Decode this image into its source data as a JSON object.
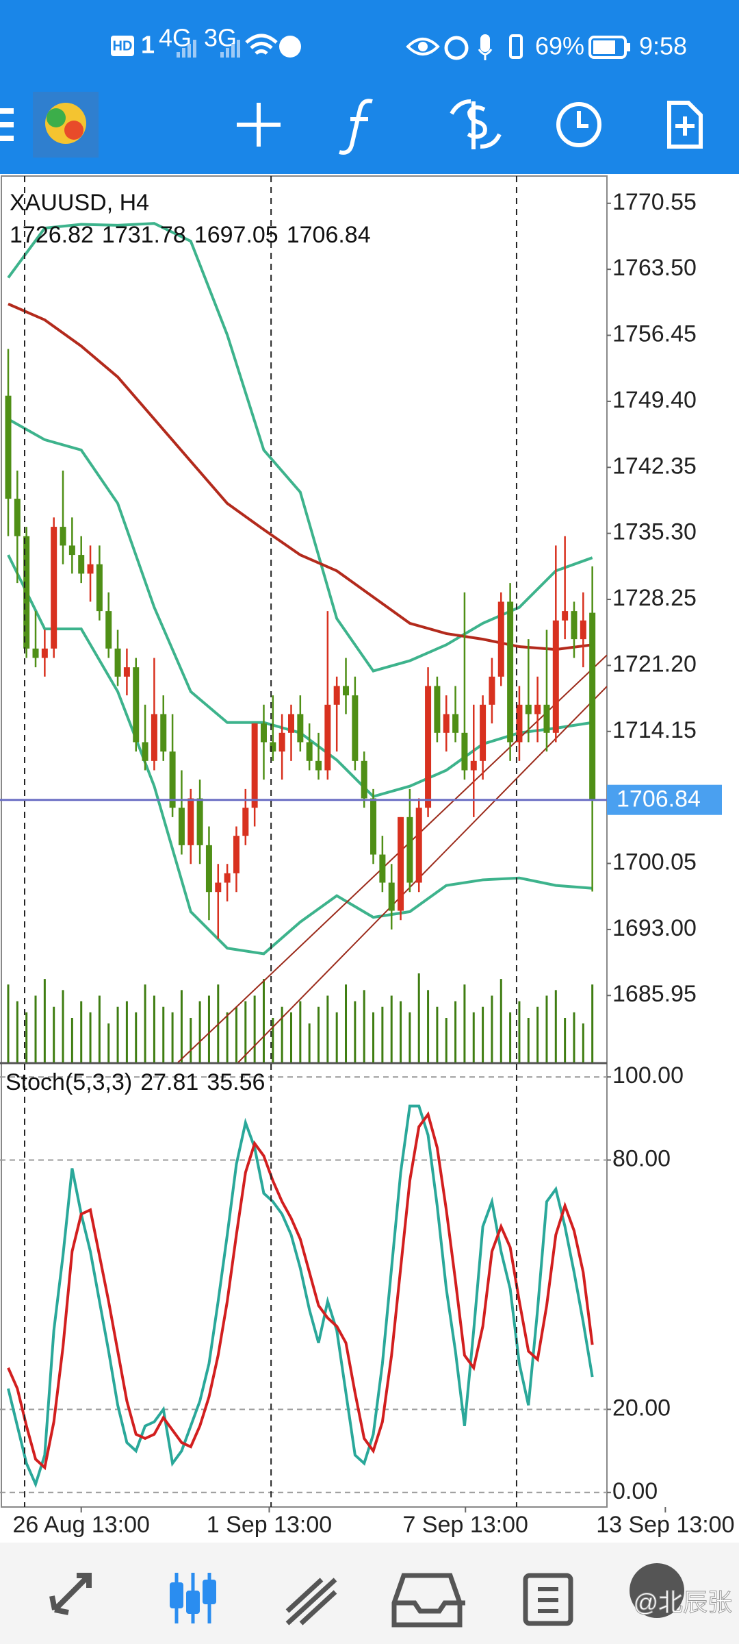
{
  "status_bar": {
    "network": [
      "HD",
      "1",
      "4G",
      "3G"
    ],
    "battery": "69%",
    "time": "9:58"
  },
  "chart_data": [
    {
      "type": "candlestick",
      "title": "XAUUSD, H4",
      "open": [
        1750,
        1739,
        1735,
        1723,
        1722,
        1723,
        1736,
        1734,
        1733,
        1731,
        1732,
        1727,
        1723,
        1720,
        1721,
        1713,
        1711,
        1716,
        1712,
        1706,
        1702,
        1707,
        1702,
        1697,
        1698,
        1699,
        1703,
        1706,
        1715,
        1713,
        1712,
        1714,
        1716,
        1713,
        1711,
        1710,
        1717,
        1719,
        1718,
        1711,
        1707,
        1701,
        1698,
        1695,
        1705,
        1698,
        1706,
        1719,
        1714,
        1716,
        1714,
        1710,
        1711,
        1717,
        1720,
        1728,
        1713,
        1717,
        1716,
        1717,
        1714,
        1726,
        1727,
        1724,
        1726.82
      ],
      "high": [
        1755,
        1742,
        1736,
        1727,
        1725,
        1737,
        1742,
        1737,
        1735,
        1734,
        1734,
        1729,
        1725,
        1723,
        1722,
        1717,
        1722,
        1718,
        1716,
        1710,
        1708,
        1709,
        1704,
        1700,
        1700,
        1704,
        1708,
        1715,
        1717,
        1718,
        1716,
        1717,
        1718,
        1715,
        1714,
        1727,
        1720,
        1722,
        1720,
        1712,
        1708,
        1703,
        1700,
        1705,
        1708,
        1707,
        1721,
        1720,
        1718,
        1719,
        1729,
        1717,
        1718,
        1722,
        1729,
        1730,
        1719,
        1724,
        1720,
        1725,
        1734,
        1735,
        1728,
        1729,
        1731.78
      ],
      "low": [
        1735,
        1730,
        1722,
        1721,
        1720,
        1722,
        1732,
        1731,
        1730,
        1728,
        1726,
        1722,
        1719,
        1718,
        1712,
        1710,
        1710,
        1711,
        1705,
        1701,
        1700,
        1700,
        1694,
        1692,
        1696,
        1697,
        1702,
        1704,
        1709,
        1711,
        1709,
        1711,
        1712,
        1710,
        1709,
        1709,
        1712,
        1716,
        1710,
        1706,
        1700,
        1697,
        1693,
        1694,
        1697,
        1697,
        1705,
        1713,
        1712,
        1713,
        1709,
        1705,
        1709,
        1715,
        1719,
        1711,
        1711,
        1713,
        1713,
        1712,
        1713,
        1724,
        1722,
        1721,
        1697.05
      ],
      "close": [
        1739,
        1735,
        1723,
        1722,
        1723,
        1736,
        1734,
        1733,
        1731,
        1732,
        1727,
        1723,
        1720,
        1721,
        1713,
        1711,
        1716,
        1712,
        1706,
        1702,
        1707,
        1702,
        1697,
        1698,
        1699,
        1703,
        1706,
        1715,
        1713,
        1712,
        1714,
        1716,
        1713,
        1711,
        1710,
        1717,
        1719,
        1718,
        1711,
        1707,
        1701,
        1698,
        1695,
        1705,
        1698,
        1706,
        1719,
        1714,
        1716,
        1714,
        1710,
        1711,
        1717,
        1720,
        1728,
        1713,
        1717,
        1716,
        1717,
        1714,
        1726,
        1727,
        1724,
        1726,
        1706.84
      ],
      "volume": [
        70,
        55,
        45,
        60,
        75,
        50,
        65,
        40,
        55,
        45,
        60,
        35,
        50,
        55,
        45,
        70,
        60,
        50,
        45,
        65,
        40,
        55,
        60,
        70,
        45,
        50,
        55,
        60,
        75,
        40,
        50,
        45,
        55,
        35,
        50,
        60,
        45,
        70,
        55,
        65,
        45,
        50,
        60,
        55,
        45,
        80,
        65,
        50,
        40,
        55,
        70,
        45,
        50,
        60,
        75,
        45,
        55,
        40,
        50,
        60,
        65,
        40,
        45,
        35,
        70
      ],
      "up_color": "#d8311f",
      "down_color": "#4f8f16",
      "volume_color": "#3f7d12",
      "overlays": [
        {
          "color": "#3db38c",
          "x": [
            0,
            4,
            8,
            12,
            16,
            20,
            24,
            28,
            32,
            36,
            40,
            44,
            48,
            52,
            56,
            60,
            64
          ],
          "values": [
            1762.6,
            1767.9,
            1768.3,
            1768.2,
            1768.4,
            1766.5,
            1756.5,
            1744.2,
            1739.7,
            1726.2,
            1720.6,
            1721.7,
            1723.4,
            1725.7,
            1727.4,
            1731.3,
            1732.7
          ]
        },
        {
          "color": "#3db38c",
          "x": [
            0,
            4,
            8,
            12,
            16,
            20,
            24,
            28,
            32,
            36,
            40,
            44,
            48,
            52,
            56,
            60,
            64
          ],
          "values": [
            1747.5,
            1745.3,
            1744.2,
            1738.5,
            1727.4,
            1718.4,
            1715.1,
            1715.1,
            1714,
            1711.1,
            1707.2,
            1708.3,
            1710,
            1712.8,
            1714,
            1714.5,
            1715.1
          ]
        },
        {
          "color": "#3db38c",
          "x": [
            0,
            4,
            8,
            12,
            16,
            20,
            24,
            28,
            32,
            36,
            40,
            44,
            48,
            52,
            56,
            60,
            64
          ],
          "values": [
            1733,
            1725.1,
            1725.1,
            1718.4,
            1708.3,
            1694.9,
            1691,
            1690.4,
            1693.8,
            1696.6,
            1694.3,
            1694.9,
            1697.7,
            1698.3,
            1698.5,
            1697.7,
            1697.4
          ]
        },
        {
          "color": "#b32a1c",
          "x": [
            0,
            4,
            8,
            12,
            16,
            20,
            24,
            28,
            32,
            36,
            40,
            44,
            48,
            52,
            56,
            60,
            64
          ],
          "values": [
            1759.8,
            1758.1,
            1755.3,
            1752,
            1747.5,
            1743,
            1738.5,
            1735.7,
            1733,
            1731.3,
            1728.5,
            1725.7,
            1724.6,
            1724,
            1723.2,
            1722.9,
            1723.4
          ]
        }
      ],
      "trendlines": [
        {
          "color": "#9b2a1a",
          "x": [
            18.6,
            65.6
          ],
          "values": [
            1678.8,
            1722.3
          ]
        },
        {
          "color": "#9b2a1a",
          "x": [
            25.2,
            65.6
          ],
          "values": [
            1678.8,
            1718.96
          ]
        }
      ],
      "bid_color": "#6b6fc4",
      "tag_color": "#4aa0f0",
      "separators": [
        1.8,
        28.8,
        55.7
      ],
      "xlim": [
        -0.9,
        65.6
      ],
      "ylim": [
        1678.8,
        1773.46
      ],
      "yticks": [
        1770.55,
        {
          "value": 1763.5,
          "label": "1763.50"
        },
        1756.45,
        {
          "value": 1749.4,
          "label": "1749.40"
        },
        1742.35,
        {
          "value": 1735.3,
          "label": "1735.30"
        },
        1728.25,
        {
          "value": 1721.2,
          "label": "1721.20"
        },
        1714.15,
        1700.05,
        {
          "value": 1693,
          "label": "1693.00"
        },
        1685.95
      ],
      "grid": false
    },
    {
      "type": "line",
      "title": "Stoch(5,3,3)",
      "series": [
        {
          "color": "#2aa89a",
          "values": [
            25,
            16,
            7,
            2,
            9,
            39,
            57,
            78,
            67,
            58,
            46,
            34,
            21,
            12,
            10,
            16,
            17,
            20,
            7,
            10,
            16,
            22,
            31,
            46,
            62,
            79,
            89,
            83,
            72,
            70,
            67,
            62,
            54,
            44,
            36,
            46,
            39,
            24,
            9,
            7,
            14,
            31,
            54,
            77,
            93,
            93,
            86,
            69,
            49,
            34,
            16,
            39,
            64,
            70,
            58,
            49,
            31,
            21,
            44,
            70,
            73,
            64,
            53,
            41,
            27.81
          ]
        },
        {
          "color": "#d21f1f",
          "values": [
            30,
            25,
            16,
            8,
            6,
            17,
            35,
            58,
            67,
            68,
            57,
            46,
            34,
            22,
            14,
            13,
            14,
            18,
            15,
            12,
            11,
            16,
            23,
            33,
            46,
            62,
            77,
            84,
            81,
            75,
            70,
            66,
            61,
            53,
            45,
            42,
            40,
            36,
            24,
            13,
            10,
            17,
            33,
            54,
            75,
            88,
            91,
            83,
            68,
            51,
            33,
            30,
            40,
            58,
            64,
            59,
            46,
            34,
            32,
            45,
            62,
            69,
            63,
            53,
            35.56
          ]
        }
      ],
      "xlim": [
        -0.9,
        65.6
      ],
      "ylim": [
        -3.5,
        103
      ],
      "yticks": [
        {
          "value": 100,
          "label": "100.00"
        },
        {
          "value": 80,
          "label": "80.00"
        },
        {
          "value": 20,
          "label": "20.00"
        },
        {
          "value": 0,
          "label": "0.00"
        }
      ],
      "xticks": [
        {
          "value": 8,
          "label": "26 Aug 13:00"
        },
        {
          "value": 28.6,
          "label": "1 Sep 13:00"
        },
        {
          "value": 50.1,
          "label": "7 Sep 13:00"
        },
        {
          "value": 72,
          "label": "13 Sep 13:00"
        }
      ],
      "grid": true
    }
  ],
  "watermark": "@北辰张"
}
